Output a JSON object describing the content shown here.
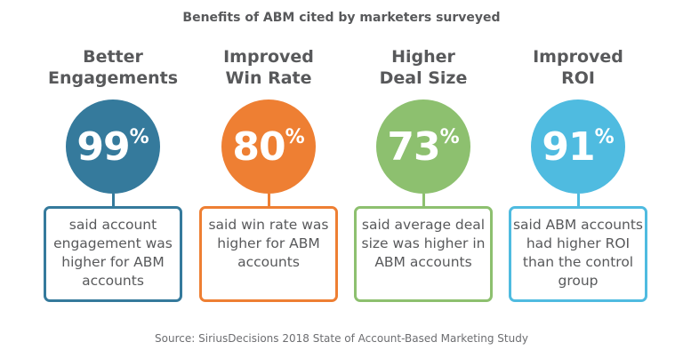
{
  "title": "Benefits of ABM cited by marketers surveyed",
  "source": "Source: SiriusDecisions 2018 State of Account-Based Marketing Study",
  "chart_data": {
    "type": "infographic",
    "title": "Benefits of ABM cited by marketers surveyed",
    "categories": [
      "Better Engagements",
      "Improved Win Rate",
      "Higher Deal Size",
      "Improved ROI"
    ],
    "values": [
      99,
      80,
      73,
      91
    ],
    "unit": "%"
  },
  "items": [
    {
      "heading": "Better\nEngagements",
      "value": "99",
      "unit": "%",
      "desc": "said account engagement was higher for ABM accounts",
      "color": "#357a9c"
    },
    {
      "heading": "Improved\nWin Rate",
      "value": "80",
      "unit": "%",
      "desc": "said win rate was higher for ABM accounts",
      "color": "#ee7f33"
    },
    {
      "heading": "Higher\nDeal Size",
      "value": "73",
      "unit": "%",
      "desc": "said average deal size was higher in ABM accounts",
      "color": "#8dc06f"
    },
    {
      "heading": "Improved\nROI",
      "value": "91",
      "unit": "%",
      "desc": "said ABM accounts had higher ROI than the control group",
      "color": "#4fbbe0"
    }
  ]
}
